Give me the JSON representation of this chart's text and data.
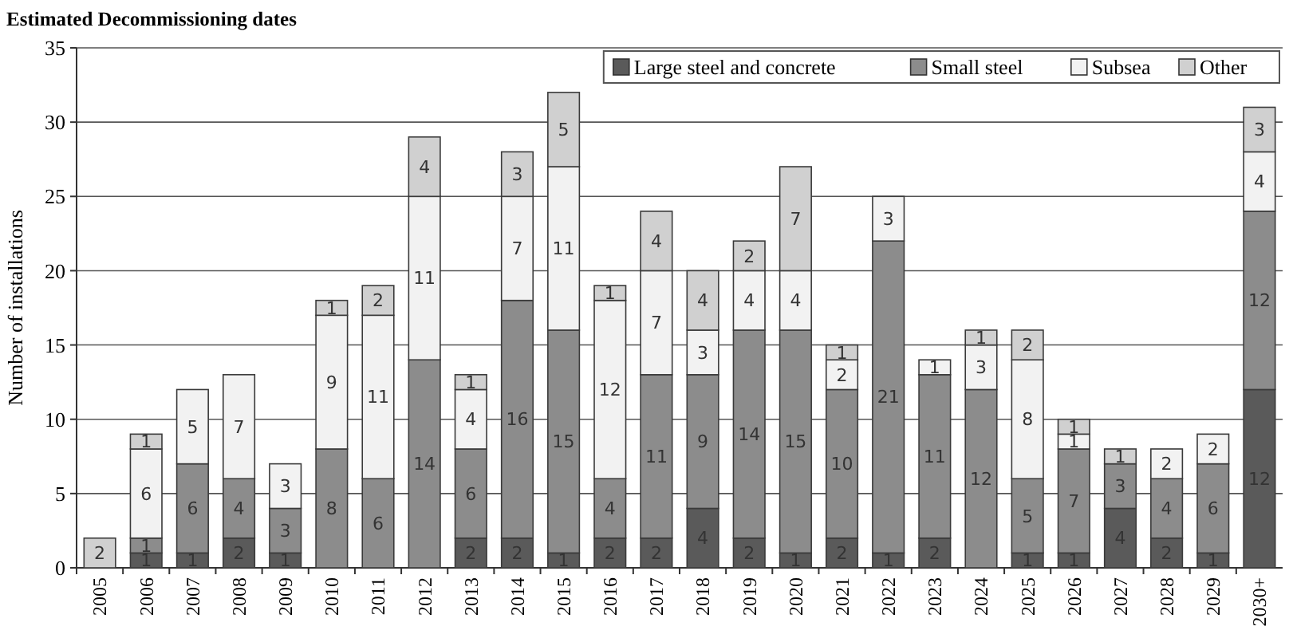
{
  "chart_data": {
    "type": "bar",
    "stacked": true,
    "title": "Estimated Decommissioning dates",
    "ylabel": "Number of installations",
    "categories": [
      "2005",
      "2006",
      "2007",
      "2008",
      "2009",
      "2010",
      "2011",
      "2012",
      "2013",
      "2014",
      "2015",
      "2016",
      "2017",
      "2018",
      "2019",
      "2020",
      "2021",
      "2022",
      "2023",
      "2024",
      "2025",
      "2026",
      "2027",
      "2028",
      "2029",
      "2030+"
    ],
    "series": [
      {
        "name": "Large steel and concrete",
        "color": "#5a5a5a",
        "values": [
          null,
          1,
          1,
          2,
          1,
          null,
          null,
          null,
          2,
          2,
          1,
          2,
          2,
          4,
          2,
          1,
          2,
          1,
          2,
          null,
          1,
          1,
          4,
          2,
          1,
          12
        ]
      },
      {
        "name": "Small steel",
        "color": "#8c8c8c",
        "values": [
          null,
          1,
          6,
          4,
          3,
          8,
          6,
          14,
          6,
          16,
          15,
          4,
          11,
          9,
          14,
          15,
          10,
          21,
          11,
          12,
          5,
          7,
          3,
          4,
          6,
          12
        ]
      },
      {
        "name": "Subsea",
        "color": "#f2f2f2",
        "values": [
          null,
          6,
          5,
          7,
          3,
          9,
          11,
          11,
          4,
          7,
          11,
          12,
          7,
          3,
          4,
          4,
          2,
          3,
          1,
          3,
          8,
          1,
          null,
          2,
          2,
          4
        ]
      },
      {
        "name": "Other",
        "color": "#d0d0d0",
        "values": [
          2,
          1,
          null,
          null,
          null,
          1,
          2,
          4,
          1,
          3,
          5,
          1,
          4,
          4,
          2,
          7,
          1,
          null,
          null,
          1,
          2,
          1,
          1,
          null,
          null,
          3
        ]
      }
    ],
    "ylim": [
      0,
      35
    ],
    "yticks": [
      0,
      5,
      10,
      15,
      20,
      25,
      30,
      35
    ],
    "grid": "y",
    "legend": "top right",
    "data_labels": true
  }
}
